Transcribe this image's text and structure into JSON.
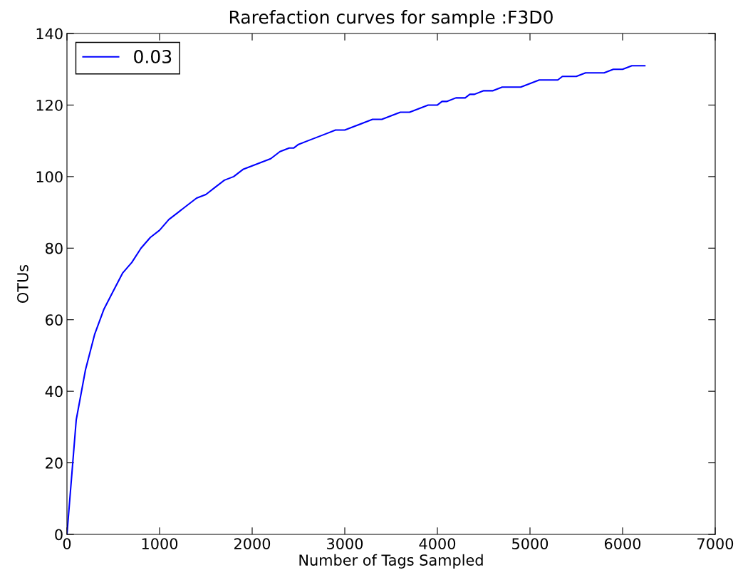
{
  "chart_data": {
    "type": "line",
    "title": "Rarefaction curves for sample :F3D0",
    "xlabel": "Number of Tags Sampled",
    "ylabel": "OTUs",
    "x": [
      0,
      100,
      200,
      300,
      400,
      500,
      600,
      700,
      800,
      900,
      1000,
      1100,
      1200,
      1300,
      1400,
      1500,
      1600,
      1700,
      1800,
      1900,
      2000,
      2100,
      2200,
      2300,
      2400,
      2450,
      2500,
      2600,
      2700,
      2800,
      2900,
      3000,
      3100,
      3200,
      3300,
      3400,
      3500,
      3600,
      3700,
      3800,
      3900,
      4000,
      4050,
      4100,
      4200,
      4300,
      4350,
      4400,
      4500,
      4600,
      4700,
      4900,
      5000,
      5100,
      5300,
      5350,
      5500,
      5600,
      5800,
      5900,
      6000,
      6100,
      6240
    ],
    "series": [
      {
        "name": "0.03",
        "color": "#0000ff",
        "values": [
          0,
          32,
          46,
          56,
          63,
          68,
          73,
          76,
          80,
          83,
          85,
          88,
          90,
          92,
          94,
          95,
          97,
          99,
          100,
          102,
          103,
          104,
          105,
          107,
          108,
          108,
          109,
          110,
          111,
          112,
          113,
          113,
          114,
          115,
          116,
          116,
          117,
          118,
          118,
          119,
          120,
          120,
          121,
          121,
          122,
          122,
          123,
          123,
          124,
          124,
          125,
          125,
          126,
          127,
          127,
          128,
          128,
          129,
          129,
          130,
          130,
          131,
          131
        ]
      }
    ],
    "xlim": [
      0,
      7000
    ],
    "xticks": [
      0,
      1000,
      2000,
      3000,
      4000,
      5000,
      6000,
      7000
    ],
    "ylim": [
      0,
      140
    ],
    "yticks": [
      0,
      20,
      40,
      60,
      80,
      100,
      120,
      140
    ],
    "grid": false,
    "legend": "top left",
    "marker": "none",
    "line_style": "solid"
  }
}
